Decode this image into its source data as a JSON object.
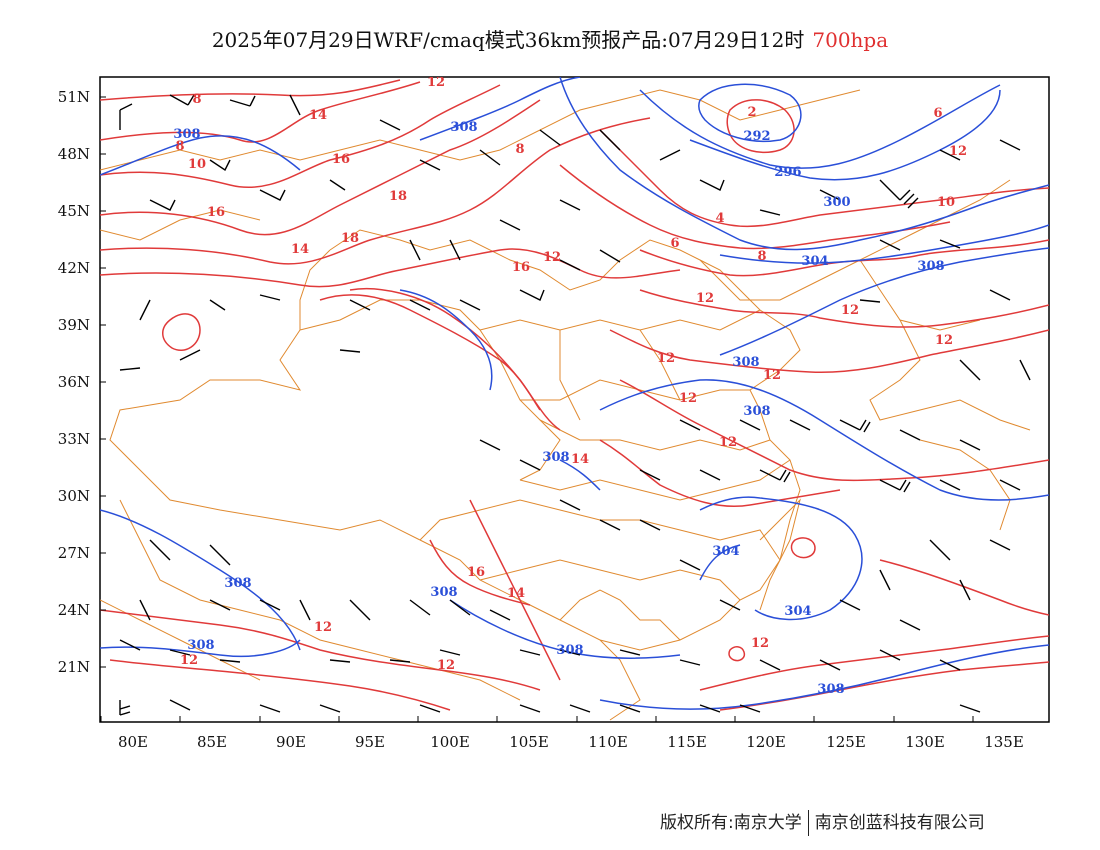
{
  "title": {
    "main": "2025年07月29日WRF/cmaq模式36km预报产品:07月29日12时",
    "level": "700hpa"
  },
  "footer": {
    "left": "版权所有:南京大学",
    "right": "南京创蓝科技有限公司"
  },
  "axes": {
    "lon_ticks": [
      "80E",
      "85E",
      "90E",
      "95E",
      "100E",
      "105E",
      "110E",
      "115E",
      "120E",
      "125E",
      "130E",
      "135E"
    ],
    "lat_ticks": [
      "51N",
      "48N",
      "45N",
      "42N",
      "39N",
      "36N",
      "33N",
      "30N",
      "27N",
      "24N",
      "21N"
    ]
  },
  "colors": {
    "temperature": "#e03a3a",
    "height": "#2a4fd8",
    "border": "#e08a30",
    "wind": "#000000"
  },
  "temperature_labels": [
    "12",
    "8",
    "2",
    "6",
    "8",
    "14",
    "8",
    "10",
    "16",
    "12",
    "18",
    "16",
    "18",
    "14",
    "12",
    "4",
    "6",
    "8",
    "10",
    "16",
    "12",
    "12",
    "12",
    "12",
    "12",
    "12",
    "12",
    "14",
    "16",
    "14",
    "12",
    "12",
    "12",
    "12"
  ],
  "height_labels": [
    "308",
    "308",
    "292",
    "296",
    "300",
    "304",
    "308",
    "308",
    "308",
    "308",
    "304",
    "304",
    "308",
    "308",
    "308",
    "308",
    "308"
  ]
}
